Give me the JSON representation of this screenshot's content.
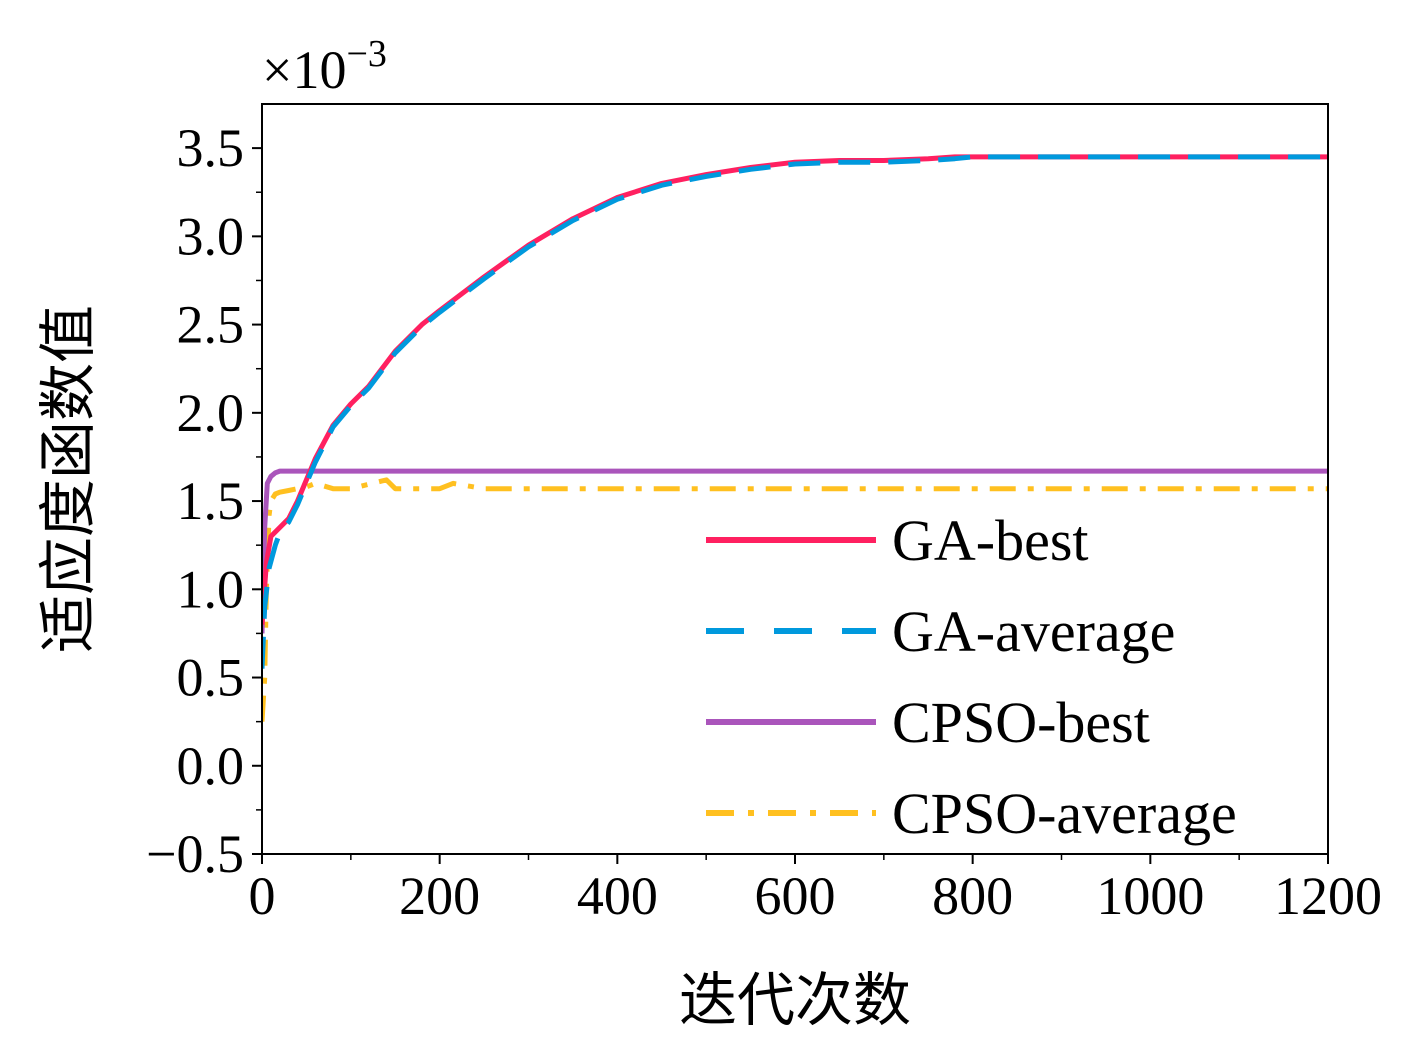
{
  "chart_data": {
    "type": "line",
    "xlabel": "迭代次数",
    "ylabel": "适应度函数值",
    "xlim": [
      0,
      1200
    ],
    "ylim": [
      -0.5,
      3.75
    ],
    "y_scale_note": "×10⁻³",
    "y_scale_base": "×10",
    "y_scale_exp": "−3",
    "x_ticks": [
      0,
      200,
      400,
      600,
      800,
      1000,
      1200
    ],
    "x_tick_labels": [
      "0",
      "200",
      "400",
      "600",
      "800",
      "1000",
      "1200"
    ],
    "y_ticks": [
      -0.5,
      0.0,
      0.5,
      1.0,
      1.5,
      2.0,
      2.5,
      3.0,
      3.5
    ],
    "y_tick_labels": [
      "−0.5",
      "0.0",
      "0.5",
      "1.0",
      "1.5",
      "2.0",
      "2.5",
      "3.0",
      "3.5"
    ],
    "legend_position": "bottom-right",
    "series": [
      {
        "name": "GA-best",
        "color": "#ff2060",
        "style": "solid",
        "x": [
          0,
          5,
          10,
          20,
          30,
          40,
          50,
          60,
          80,
          100,
          120,
          150,
          180,
          200,
          250,
          300,
          350,
          400,
          450,
          500,
          550,
          600,
          650,
          700,
          750,
          780,
          800,
          900,
          1000,
          1100,
          1200
        ],
        "y": [
          0.8,
          1.15,
          1.3,
          1.35,
          1.4,
          1.5,
          1.62,
          1.74,
          1.93,
          2.05,
          2.15,
          2.35,
          2.5,
          2.58,
          2.77,
          2.95,
          3.1,
          3.22,
          3.3,
          3.35,
          3.39,
          3.42,
          3.43,
          3.43,
          3.44,
          3.45,
          3.45,
          3.45,
          3.45,
          3.45,
          3.45
        ]
      },
      {
        "name": "GA-average",
        "color": "#0099dd",
        "style": "dashed",
        "x": [
          0,
          3,
          8,
          15,
          20,
          30,
          40,
          50,
          60,
          80,
          100,
          120,
          150,
          180,
          200,
          250,
          300,
          350,
          400,
          450,
          500,
          550,
          600,
          650,
          700,
          750,
          780,
          800,
          900,
          1000,
          1100,
          1200
        ],
        "y": [
          0.55,
          0.9,
          1.12,
          1.25,
          1.32,
          1.38,
          1.48,
          1.6,
          1.72,
          1.92,
          2.04,
          2.14,
          2.34,
          2.49,
          2.57,
          2.76,
          2.94,
          3.09,
          3.21,
          3.29,
          3.34,
          3.38,
          3.41,
          3.42,
          3.42,
          3.43,
          3.44,
          3.45,
          3.45,
          3.45,
          3.45,
          3.45
        ]
      },
      {
        "name": "CPSO-best",
        "color": "#aa55bb",
        "style": "solid",
        "x": [
          0,
          3,
          6,
          10,
          15,
          20,
          1200
        ],
        "y": [
          0.75,
          1.35,
          1.6,
          1.64,
          1.66,
          1.67,
          1.67
        ]
      },
      {
        "name": "CPSO-average",
        "color": "#ffc020",
        "style": "dashdot",
        "x": [
          0,
          3,
          5,
          8,
          10,
          15,
          20,
          30,
          40,
          50,
          60,
          80,
          100,
          140,
          150,
          200,
          215,
          250,
          300,
          350,
          400,
          500,
          600,
          700,
          800,
          900,
          1000,
          1100,
          1200
        ],
        "y": [
          0.25,
          0.5,
          1.0,
          1.42,
          1.5,
          1.54,
          1.55,
          1.56,
          1.57,
          1.58,
          1.6,
          1.57,
          1.57,
          1.62,
          1.57,
          1.57,
          1.6,
          1.57,
          1.57,
          1.57,
          1.57,
          1.57,
          1.57,
          1.57,
          1.57,
          1.57,
          1.57,
          1.57,
          1.57
        ]
      }
    ]
  }
}
